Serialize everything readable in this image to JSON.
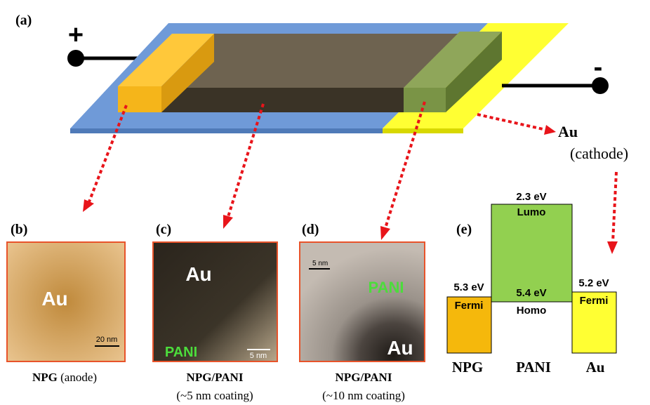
{
  "panel_a": {
    "label": "(a)",
    "plus": "+",
    "minus": "-",
    "cathode_name": "Au",
    "cathode_note": "(cathode)"
  },
  "panel_b": {
    "label": "(b)",
    "image_text": "Au",
    "scale": "20 nm",
    "caption_bold": "NPG",
    "caption_note": "(anode)"
  },
  "panel_c": {
    "label": "(c)",
    "image_text_top": "Au",
    "image_text_bottom": "PANI",
    "scale": "5 nm",
    "caption": "NPG/PANI",
    "caption_note": "(~5 nm coating)"
  },
  "panel_d": {
    "label": "(d)",
    "image_text_top": "PANI",
    "image_text_bottom": "Au",
    "scale": "5 nm",
    "caption": "NPG/PANI",
    "caption_note": "(~10 nm coating)"
  },
  "panel_e": {
    "label": "(e)",
    "npg": {
      "energy": "5.3 eV",
      "level": "Fermi",
      "name": "NPG"
    },
    "pani": {
      "lumo_energy": "2.3 eV",
      "lumo": "Lumo",
      "homo_energy": "5.4 eV",
      "homo": "Homo",
      "name": "PANI"
    },
    "au": {
      "energy": "5.2 eV",
      "level": "Fermi",
      "name": "Au"
    }
  }
}
